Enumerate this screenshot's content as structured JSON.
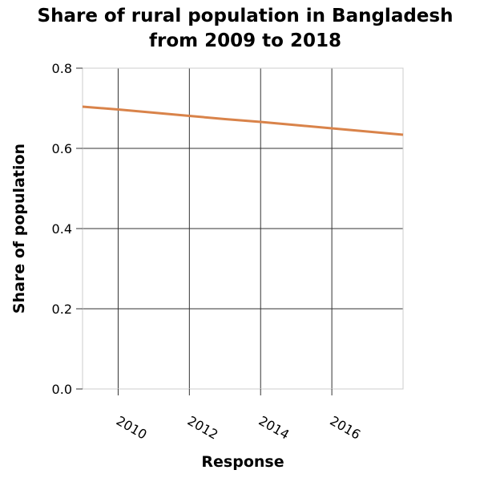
{
  "chart_data": {
    "type": "line",
    "title_lines": [
      "Share of rural population in Bangladesh",
      "from 2009 to 2018"
    ],
    "xlabel": "Response",
    "ylabel": "Share of population",
    "xlim": [
      2009,
      2018
    ],
    "ylim": [
      0,
      0.8
    ],
    "x_ticks": [
      2010,
      2012,
      2014,
      2016
    ],
    "x_tick_labels": [
      "2010",
      "2012",
      "2014",
      "2016"
    ],
    "y_ticks": [
      0,
      0.2,
      0.4,
      0.6,
      0.8
    ],
    "y_tick_labels": [
      "0.0",
      "0.2",
      "0.4",
      "0.6",
      "0.8"
    ],
    "grid": true,
    "series": [
      {
        "color": "#d9834a",
        "x": [
          2009,
          2010,
          2011,
          2012,
          2013,
          2014,
          2015,
          2016,
          2017,
          2018
        ],
        "y": [
          0.704,
          0.697,
          0.689,
          0.681,
          0.673,
          0.666,
          0.658,
          0.65,
          0.642,
          0.634
        ]
      }
    ]
  }
}
